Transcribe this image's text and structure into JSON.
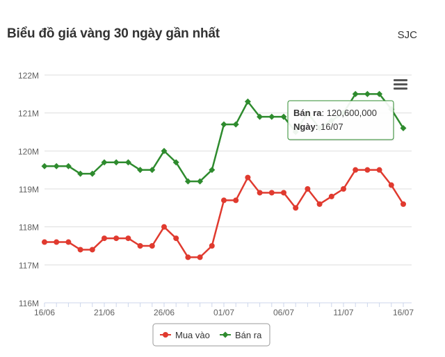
{
  "header": {
    "title": "Biểu đồ giá vàng 30 ngày gần nhất",
    "brand": "SJC"
  },
  "colors": {
    "buy": "#e03a2f",
    "sell": "#2e8b2e",
    "grid": "#dddddd",
    "axis_text": "#606060"
  },
  "tooltip": {
    "label_sell": "Bán ra",
    "value": "120,600,000",
    "label_date": "Ngày",
    "date": "16/07"
  },
  "menu": {
    "icon": "hamburger-menu-icon"
  },
  "chart_data": {
    "type": "line",
    "title": "Biểu đồ giá vàng 30 ngày gần nhất",
    "x": [
      "16/06",
      "17/06",
      "18/06",
      "19/06",
      "20/06",
      "21/06",
      "22/06",
      "23/06",
      "24/06",
      "25/06",
      "26/06",
      "27/06",
      "28/06",
      "29/06",
      "30/06",
      "01/07",
      "02/07",
      "03/07",
      "04/07",
      "05/07",
      "06/07",
      "07/07",
      "08/07",
      "09/07",
      "10/07",
      "11/07",
      "12/07",
      "13/07",
      "14/07",
      "15/07",
      "16/07"
    ],
    "x_ticks": [
      "16/06",
      "21/06",
      "26/06",
      "01/07",
      "06/07",
      "11/07",
      "16/07"
    ],
    "y_ticks": [
      "116M",
      "117M",
      "118M",
      "119M",
      "120M",
      "121M",
      "122M"
    ],
    "ylim": [
      116000000,
      122000000
    ],
    "series": [
      {
        "name": "Mua vào",
        "values": [
          117600000,
          117600000,
          117600000,
          117400000,
          117400000,
          117700000,
          117700000,
          117700000,
          117500000,
          117500000,
          118000000,
          117700000,
          117200000,
          117200000,
          117500000,
          118700000,
          118700000,
          119300000,
          118900000,
          118900000,
          118900000,
          118500000,
          119000000,
          118600000,
          118800000,
          119000000,
          119500000,
          119500000,
          119500000,
          119100000,
          118600000
        ]
      },
      {
        "name": "Bán ra",
        "values": [
          119600000,
          119600000,
          119600000,
          119400000,
          119400000,
          119700000,
          119700000,
          119700000,
          119500000,
          119500000,
          120000000,
          119700000,
          119200000,
          119200000,
          119500000,
          120700000,
          120700000,
          121300000,
          120900000,
          120900000,
          120900000,
          120500000,
          121000000,
          120600000,
          120800000,
          121000000,
          121500000,
          121500000,
          121500000,
          121100000,
          120600000
        ]
      }
    ],
    "grid": true,
    "legend": "bottom-center"
  }
}
